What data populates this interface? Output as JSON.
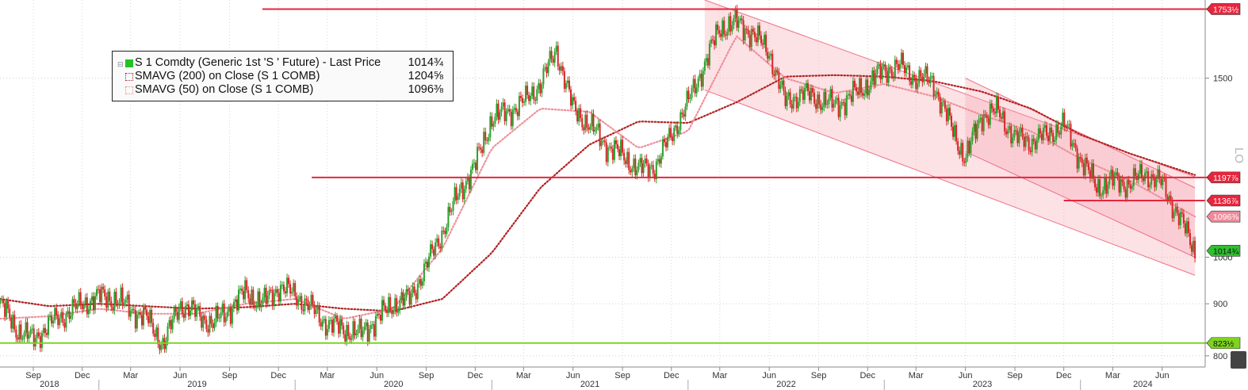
{
  "legend": {
    "price_label": "S 1 Comdty (Generic 1st 'S ' Future) - Last Price",
    "price_value": "1014¾",
    "ma200_label": "SMAVG (200)  on Close (S 1 COMB)",
    "ma200_value": "1204⅝",
    "ma50_label": "SMAVG (50)  on Close (S 1 COMB)",
    "ma50_value": "1096⅜"
  },
  "colors": {
    "up_candle": "#2ca02c",
    "down_candle": "#d62728",
    "ma200": "#b22222",
    "ma50": "#ef8f9a",
    "levels": "#e8253d",
    "support": "#7ed321",
    "channel_fill": "#f7a8b5"
  },
  "chart_data": {
    "type": "line",
    "scale": "log",
    "ylim": [
      780,
      1790
    ],
    "y_ticks": [
      800,
      900,
      1000,
      1500
    ],
    "x_ticks": [
      "Sep",
      "Dec",
      "Mar",
      "Jun",
      "Sep",
      "Dec",
      "Mar",
      "Jun",
      "Sep",
      "Dec",
      "Mar",
      "Jun",
      "Sep",
      "Dec",
      "Mar",
      "Jun",
      "Sep",
      "Dec",
      "Mar",
      "Jun",
      "Sep",
      "Dec",
      "Mar",
      "Jun"
    ],
    "x_tick_dates": [
      "2018-09",
      "2018-12",
      "2019-03",
      "2019-06",
      "2019-09",
      "2019-12",
      "2020-03",
      "2020-06",
      "2020-09",
      "2020-12",
      "2021-03",
      "2021-06",
      "2021-09",
      "2021-12",
      "2022-03",
      "2022-06",
      "2022-09",
      "2022-12",
      "2023-03",
      "2023-06",
      "2023-09",
      "2023-12",
      "2024-03",
      "2024-06"
    ],
    "years": [
      "2018",
      "2019",
      "2020",
      "2021",
      "2022",
      "2023",
      "2024"
    ],
    "axis_label_fragment": "LO",
    "series": [
      {
        "name": "S 1 Comdty (Generic 1st 'S ' Future) - Last Price",
        "style": "candlestick",
        "x": [
          "2018-07",
          "2018-08",
          "2018-09",
          "2018-10",
          "2018-11",
          "2018-12",
          "2019-01",
          "2019-02",
          "2019-03",
          "2019-04",
          "2019-05",
          "2019-06",
          "2019-07",
          "2019-08",
          "2019-09",
          "2019-10",
          "2019-11",
          "2019-12",
          "2020-01",
          "2020-02",
          "2020-03",
          "2020-04",
          "2020-05",
          "2020-06",
          "2020-07",
          "2020-08",
          "2020-09",
          "2020-10",
          "2020-11",
          "2020-12",
          "2021-01",
          "2021-02",
          "2021-03",
          "2021-04",
          "2021-05",
          "2021-06",
          "2021-07",
          "2021-08",
          "2021-09",
          "2021-10",
          "2021-11",
          "2021-12",
          "2022-01",
          "2022-02",
          "2022-03",
          "2022-04",
          "2022-05",
          "2022-06",
          "2022-07",
          "2022-08",
          "2022-09",
          "2022-10",
          "2022-11",
          "2022-12",
          "2023-01",
          "2023-02",
          "2023-03",
          "2023-04",
          "2023-05",
          "2023-06",
          "2023-07",
          "2023-08",
          "2023-09",
          "2023-10",
          "2023-11",
          "2023-12",
          "2024-01",
          "2024-02",
          "2024-03",
          "2024-04",
          "2024-05",
          "2024-06",
          "2024-07",
          "2024-08"
        ],
        "values": [
          900,
          850,
          830,
          860,
          880,
          900,
          915,
          910,
          890,
          870,
          820,
          900,
          880,
          860,
          890,
          925,
          900,
          935,
          920,
          890,
          860,
          850,
          840,
          870,
          900,
          910,
          980,
          1060,
          1160,
          1230,
          1370,
          1390,
          1420,
          1480,
          1600,
          1400,
          1350,
          1290,
          1260,
          1220,
          1230,
          1320,
          1420,
          1550,
          1680,
          1700,
          1660,
          1590,
          1420,
          1450,
          1430,
          1410,
          1440,
          1480,
          1530,
          1540,
          1500,
          1490,
          1360,
          1250,
          1380,
          1390,
          1310,
          1300,
          1320,
          1350,
          1250,
          1170,
          1190,
          1180,
          1210,
          1180,
          1100,
          1014.75
        ]
      },
      {
        "name": "SMAVG (200)  on Close (S 1 COMB)",
        "style": "dotted",
        "x": [
          "2018-07",
          "2018-10",
          "2019-01",
          "2019-04",
          "2019-07",
          "2019-10",
          "2020-01",
          "2020-04",
          "2020-07",
          "2020-10",
          "2021-01",
          "2021-04",
          "2021-07",
          "2021-10",
          "2022-01",
          "2022-04",
          "2022-07",
          "2022-10",
          "2023-01",
          "2023-04",
          "2023-07",
          "2023-10",
          "2024-01",
          "2024-04",
          "2024-08"
        ],
        "values": [
          910,
          895,
          900,
          895,
          890,
          893,
          900,
          890,
          885,
          910,
          1010,
          1170,
          1290,
          1360,
          1355,
          1420,
          1505,
          1510,
          1505,
          1490,
          1455,
          1400,
          1320,
          1265,
          1204.625
        ]
      },
      {
        "name": "SMAVG (50)  on Close (S 1 COMB)",
        "style": "dotted",
        "x": [
          "2018-07",
          "2018-10",
          "2019-01",
          "2019-04",
          "2019-07",
          "2019-10",
          "2020-01",
          "2020-04",
          "2020-07",
          "2020-10",
          "2021-01",
          "2021-04",
          "2021-07",
          "2021-10",
          "2022-01",
          "2022-04",
          "2022-07",
          "2022-10",
          "2023-01",
          "2023-04",
          "2023-07",
          "2023-10",
          "2024-01",
          "2024-04",
          "2024-08"
        ],
        "values": [
          870,
          875,
          890,
          880,
          880,
          900,
          910,
          870,
          890,
          1020,
          1280,
          1400,
          1390,
          1280,
          1330,
          1650,
          1500,
          1450,
          1480,
          1440,
          1380,
          1330,
          1250,
          1190,
          1096.375
        ]
      }
    ],
    "levels": [
      {
        "value": 1753.5,
        "label": "1753½",
        "color": "#e8253d"
      },
      {
        "value": 1197.875,
        "label": "1197⅞",
        "color": "#e8253d"
      },
      {
        "value": 1136.875,
        "label": "1136⅞",
        "color": "#e8253d"
      },
      {
        "value": 823.5,
        "label": "823½",
        "color": "#7ed321"
      }
    ],
    "right_tags": [
      {
        "value": 1753.5,
        "label": "1753½",
        "color": "#e8253d"
      },
      {
        "value": 1197.875,
        "label": "1197⅞",
        "color": "#e8253d"
      },
      {
        "value": 1136.875,
        "label": "1136⅞",
        "color": "#e8253d"
      },
      {
        "value": 1096.375,
        "label": "1096⅜",
        "color": "#f08a9a"
      },
      {
        "value": 1014.75,
        "label": "1014¾",
        "color": "#2fbf2f"
      },
      {
        "value": 823.5,
        "label": "823½",
        "color": "#7ed321"
      }
    ],
    "channels": [
      {
        "upper": [
          [
            "2022-02",
            1790
          ],
          [
            "2024-08",
            1200
          ]
        ],
        "lower": [
          [
            "2022-02",
            1460
          ],
          [
            "2024-08",
            960
          ]
        ]
      },
      {
        "upper": [
          [
            "2023-06",
            1500
          ],
          [
            "2024-08",
            1170
          ]
        ],
        "lower": [
          [
            "2023-06",
            1270
          ],
          [
            "2024-08",
            1000
          ]
        ]
      }
    ]
  }
}
